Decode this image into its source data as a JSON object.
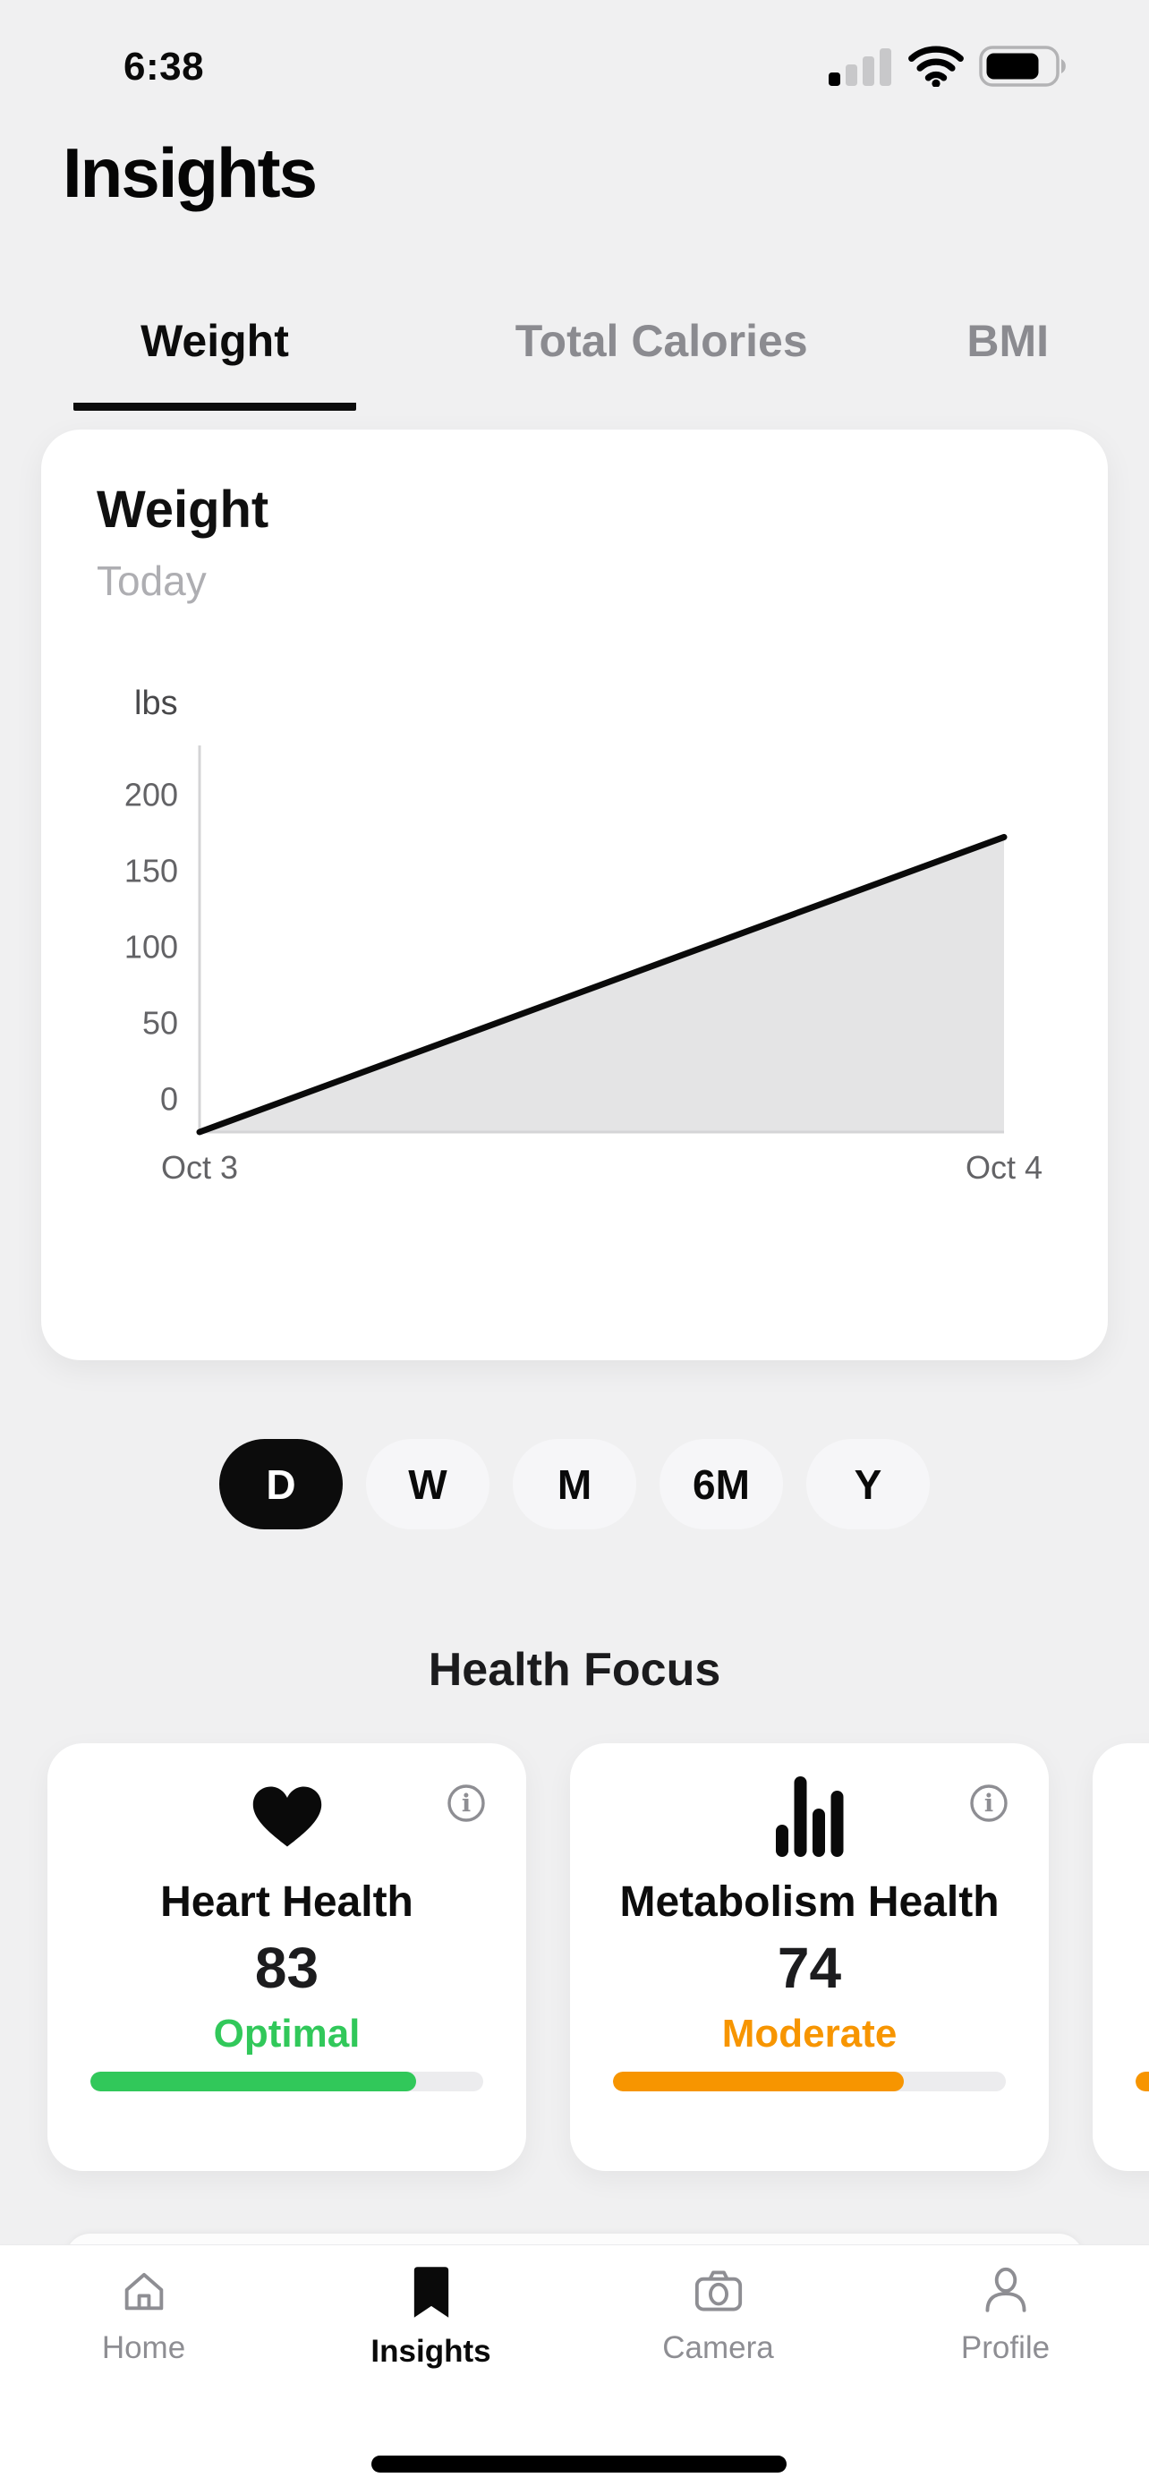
{
  "status_bar": {
    "time": "6:38",
    "cellular_bars_filled": 1,
    "cellular_bars_total": 4,
    "battery_percent": 75
  },
  "header": {
    "title": "Insights"
  },
  "tabs": {
    "items": [
      {
        "label": "Weight",
        "selected": true
      },
      {
        "label": "Total Calories",
        "selected": false
      },
      {
        "label": "BMI",
        "selected": false
      }
    ]
  },
  "weight_card": {
    "title": "Weight",
    "subtitle": "Today"
  },
  "chart_data": {
    "type": "area",
    "title": "Weight",
    "subtitle": "Today",
    "ylabel": "lbs",
    "x": [
      "Oct 3",
      "Oct 4"
    ],
    "values": [
      0,
      175
    ],
    "yticks": [
      0,
      50,
      100,
      150,
      200
    ],
    "ylim": [
      0,
      223
    ],
    "series_color": "#0a0a0a",
    "fill_color": "#e4e4e5",
    "axis_color": "#d4d4d6",
    "tick_color": "#636366",
    "grid": false,
    "legend": false
  },
  "time_ranges": {
    "options": [
      "D",
      "W",
      "M",
      "6M",
      "Y"
    ],
    "selected_index": 0
  },
  "health_focus": {
    "title": "Health Focus",
    "cards": [
      {
        "icon": "heart-icon",
        "name": "Heart Health",
        "score": "83",
        "status": "Optimal",
        "status_color": "#31c85a",
        "progress_percent": 83
      },
      {
        "icon": "bar-chart-icon",
        "name": "Metabolism Health",
        "score": "74",
        "status": "Moderate",
        "status_color": "#f79500",
        "progress_percent": 74
      },
      {
        "icon": "",
        "name": "",
        "score": "",
        "status": "",
        "status_color": "#f79500",
        "progress_percent": 74
      }
    ]
  },
  "tab_bar": {
    "items": [
      {
        "label": "Home",
        "icon": "home-icon",
        "active": false
      },
      {
        "label": "Insights",
        "icon": "bookmark-icon",
        "active": true
      },
      {
        "label": "Camera",
        "icon": "camera-icon",
        "active": false
      },
      {
        "label": "Profile",
        "icon": "profile-icon",
        "active": false
      }
    ]
  },
  "colors": {
    "background": "#f0f0f1",
    "card": "#ffffff",
    "accent_green": "#31c85a",
    "accent_orange": "#f79500",
    "inactive_gray": "#8e8e93"
  }
}
